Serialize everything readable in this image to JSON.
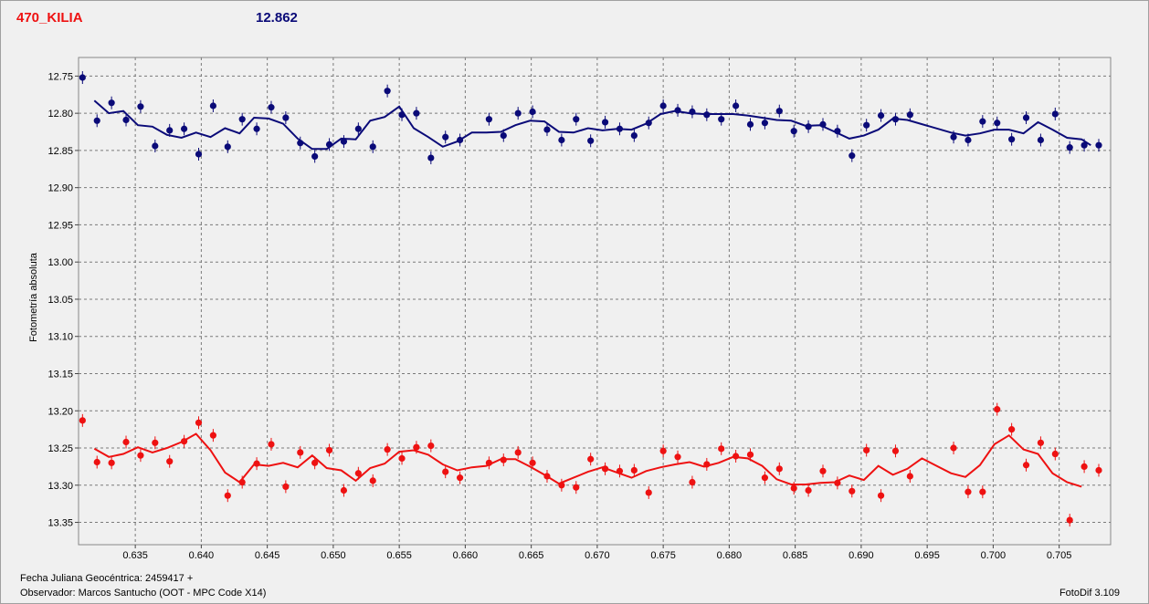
{
  "colors": {
    "series_blue": "#0a0a78",
    "series_red": "#ee1111",
    "grid": "#7a7a7a",
    "plot_bg": "#f0f0f0",
    "title_red": "#ee1111",
    "title_blue": "#0a0a78"
  },
  "chart_data": {
    "type": "scatter",
    "title": "470_KILIA",
    "subtitle": "12.862",
    "xlabel": "Fecha Juliana Geocéntrica: 2459417 +",
    "ylabel": "Fotometría absoluta",
    "xlim": [
      0.6307,
      0.7089
    ],
    "ylim": [
      12.725,
      13.38
    ],
    "y_reversed": true,
    "grid": true,
    "x_ticks": [
      0.635,
      0.64,
      0.645,
      0.65,
      0.655,
      0.66,
      0.665,
      0.67,
      0.675,
      0.68,
      0.685,
      0.69,
      0.695,
      0.7,
      0.705
    ],
    "x_tick_labels": [
      "0.635",
      "0.640",
      "0.645",
      "0.650",
      "0.655",
      "0.660",
      "0.665",
      "0.670",
      "0.675",
      "0.680",
      "0.685",
      "0.690",
      "0.695",
      "0.700",
      "0.705"
    ],
    "y_ticks": [
      12.75,
      12.8,
      12.85,
      12.9,
      12.95,
      13.0,
      13.05,
      13.1,
      13.15,
      13.2,
      13.25,
      13.3,
      13.35
    ],
    "y_tick_labels": [
      "12.75",
      "12.80",
      "12.85",
      "12.90",
      "12.95",
      "13.00",
      "13.05",
      "13.10",
      "13.15",
      "13.20",
      "13.25",
      "13.30",
      "13.35"
    ],
    "series": [
      {
        "color_key": "series_blue",
        "points": [
          [
            0.631,
            12.752
          ],
          [
            0.6321,
            12.81
          ],
          [
            0.6332,
            12.786
          ],
          [
            0.6343,
            12.809
          ],
          [
            0.6354,
            12.791
          ],
          [
            0.6365,
            12.844
          ],
          [
            0.6376,
            12.823
          ],
          [
            0.6387,
            12.821
          ],
          [
            0.6398,
            12.855
          ],
          [
            0.6409,
            12.79
          ],
          [
            0.642,
            12.845
          ],
          [
            0.6431,
            12.808
          ],
          [
            0.6442,
            12.821
          ],
          [
            0.6453,
            12.792
          ],
          [
            0.6464,
            12.806
          ],
          [
            0.6475,
            12.84
          ],
          [
            0.6486,
            12.858
          ],
          [
            0.6497,
            12.842
          ],
          [
            0.6508,
            12.838
          ],
          [
            0.6519,
            12.821
          ],
          [
            0.653,
            12.845
          ],
          [
            0.6541,
            12.77
          ],
          [
            0.6552,
            12.802
          ],
          [
            0.6563,
            12.8
          ],
          [
            0.6574,
            12.86
          ],
          [
            0.6585,
            12.832
          ],
          [
            0.6596,
            12.836
          ],
          [
            0.6618,
            12.808
          ],
          [
            0.6629,
            12.83
          ],
          [
            0.664,
            12.8
          ],
          [
            0.6651,
            12.798
          ],
          [
            0.6662,
            12.822
          ],
          [
            0.6673,
            12.836
          ],
          [
            0.6684,
            12.808
          ],
          [
            0.6695,
            12.837
          ],
          [
            0.6706,
            12.812
          ],
          [
            0.6717,
            12.821
          ],
          [
            0.6728,
            12.83
          ],
          [
            0.6739,
            12.813
          ],
          [
            0.675,
            12.79
          ],
          [
            0.6761,
            12.796
          ],
          [
            0.6772,
            12.798
          ],
          [
            0.6783,
            12.802
          ],
          [
            0.6794,
            12.808
          ],
          [
            0.6805,
            12.79
          ],
          [
            0.6816,
            12.815
          ],
          [
            0.6827,
            12.813
          ],
          [
            0.6838,
            12.797
          ],
          [
            0.6849,
            12.824
          ],
          [
            0.686,
            12.818
          ],
          [
            0.6871,
            12.815
          ],
          [
            0.6882,
            12.824
          ],
          [
            0.6893,
            12.857
          ],
          [
            0.6904,
            12.816
          ],
          [
            0.6915,
            12.803
          ],
          [
            0.6926,
            12.808
          ],
          [
            0.6937,
            12.802
          ],
          [
            0.697,
            12.832
          ],
          [
            0.6981,
            12.836
          ],
          [
            0.6992,
            12.811
          ],
          [
            0.7003,
            12.813
          ],
          [
            0.7014,
            12.835
          ],
          [
            0.7025,
            12.806
          ],
          [
            0.7036,
            12.836
          ],
          [
            0.7047,
            12.801
          ],
          [
            0.7058,
            12.846
          ],
          [
            0.7069,
            12.843
          ],
          [
            0.708,
            12.843
          ]
        ],
        "trend": [
          [
            0.6319,
            12.783
          ],
          [
            0.633,
            12.8
          ],
          [
            0.6341,
            12.797
          ],
          [
            0.6352,
            12.816
          ],
          [
            0.6363,
            12.818
          ],
          [
            0.6374,
            12.829
          ],
          [
            0.6385,
            12.833
          ],
          [
            0.6396,
            12.826
          ],
          [
            0.6407,
            12.832
          ],
          [
            0.6418,
            12.82
          ],
          [
            0.6429,
            12.827
          ],
          [
            0.644,
            12.806
          ],
          [
            0.6451,
            12.807
          ],
          [
            0.6462,
            12.814
          ],
          [
            0.6473,
            12.834
          ],
          [
            0.6484,
            12.848
          ],
          [
            0.6495,
            12.848
          ],
          [
            0.6506,
            12.834
          ],
          [
            0.6517,
            12.835
          ],
          [
            0.6528,
            12.81
          ],
          [
            0.6539,
            12.805
          ],
          [
            0.655,
            12.791
          ],
          [
            0.6561,
            12.82
          ],
          [
            0.6572,
            12.832
          ],
          [
            0.6583,
            12.845
          ],
          [
            0.6594,
            12.838
          ],
          [
            0.6605,
            12.826
          ],
          [
            0.6616,
            12.826
          ],
          [
            0.6627,
            12.825
          ],
          [
            0.6638,
            12.816
          ],
          [
            0.6649,
            12.81
          ],
          [
            0.666,
            12.811
          ],
          [
            0.6671,
            12.825
          ],
          [
            0.6682,
            12.826
          ],
          [
            0.6693,
            12.82
          ],
          [
            0.6704,
            12.823
          ],
          [
            0.6715,
            12.821
          ],
          [
            0.6726,
            12.822
          ],
          [
            0.6737,
            12.814
          ],
          [
            0.6748,
            12.801
          ],
          [
            0.6759,
            12.797
          ],
          [
            0.677,
            12.8
          ],
          [
            0.6781,
            12.801
          ],
          [
            0.6792,
            12.801
          ],
          [
            0.6803,
            12.801
          ],
          [
            0.6814,
            12.803
          ],
          [
            0.6825,
            12.806
          ],
          [
            0.6836,
            12.809
          ],
          [
            0.6847,
            12.81
          ],
          [
            0.6858,
            12.817
          ],
          [
            0.6869,
            12.816
          ],
          [
            0.688,
            12.825
          ],
          [
            0.6891,
            12.834
          ],
          [
            0.6902,
            12.83
          ],
          [
            0.6913,
            12.822
          ],
          [
            0.6924,
            12.807
          ],
          [
            0.6935,
            12.809
          ],
          [
            0.6968,
            12.826
          ],
          [
            0.6979,
            12.83
          ],
          [
            0.699,
            12.827
          ],
          [
            0.7001,
            12.822
          ],
          [
            0.7012,
            12.822
          ],
          [
            0.7023,
            12.827
          ],
          [
            0.7034,
            12.812
          ],
          [
            0.7045,
            12.822
          ],
          [
            0.7056,
            12.833
          ],
          [
            0.7067,
            12.835
          ],
          [
            0.7074,
            12.843
          ]
        ]
      },
      {
        "color_key": "series_red",
        "points": [
          [
            0.631,
            13.213
          ],
          [
            0.6321,
            13.269
          ],
          [
            0.6332,
            13.27
          ],
          [
            0.6343,
            13.242
          ],
          [
            0.6354,
            13.26
          ],
          [
            0.6365,
            13.243
          ],
          [
            0.6376,
            13.268
          ],
          [
            0.6387,
            13.241
          ],
          [
            0.6398,
            13.216
          ],
          [
            0.6409,
            13.233
          ],
          [
            0.642,
            13.314
          ],
          [
            0.6431,
            13.296
          ],
          [
            0.6442,
            13.271
          ],
          [
            0.6453,
            13.245
          ],
          [
            0.6464,
            13.302
          ],
          [
            0.6475,
            13.256
          ],
          [
            0.6486,
            13.27
          ],
          [
            0.6497,
            13.253
          ],
          [
            0.6508,
            13.307
          ],
          [
            0.6519,
            13.284
          ],
          [
            0.653,
            13.294
          ],
          [
            0.6541,
            13.252
          ],
          [
            0.6552,
            13.264
          ],
          [
            0.6563,
            13.249
          ],
          [
            0.6574,
            13.247
          ],
          [
            0.6585,
            13.282
          ],
          [
            0.6596,
            13.29
          ],
          [
            0.6618,
            13.27
          ],
          [
            0.6629,
            13.266
          ],
          [
            0.664,
            13.256
          ],
          [
            0.6651,
            13.27
          ],
          [
            0.6662,
            13.288
          ],
          [
            0.6673,
            13.3
          ],
          [
            0.6684,
            13.303
          ],
          [
            0.6695,
            13.265
          ],
          [
            0.6706,
            13.278
          ],
          [
            0.6717,
            13.281
          ],
          [
            0.6728,
            13.28
          ],
          [
            0.6739,
            13.31
          ],
          [
            0.675,
            13.254
          ],
          [
            0.6761,
            13.262
          ],
          [
            0.6772,
            13.296
          ],
          [
            0.6783,
            13.272
          ],
          [
            0.6794,
            13.251
          ],
          [
            0.6805,
            13.261
          ],
          [
            0.6816,
            13.259
          ],
          [
            0.6827,
            13.29
          ],
          [
            0.6838,
            13.278
          ],
          [
            0.6849,
            13.304
          ],
          [
            0.686,
            13.307
          ],
          [
            0.6871,
            13.281
          ],
          [
            0.6882,
            13.297
          ],
          [
            0.6893,
            13.308
          ],
          [
            0.6904,
            13.253
          ],
          [
            0.6915,
            13.314
          ],
          [
            0.6926,
            13.254
          ],
          [
            0.6937,
            13.288
          ],
          [
            0.697,
            13.25
          ],
          [
            0.6981,
            13.309
          ],
          [
            0.6992,
            13.309
          ],
          [
            0.7003,
            13.198
          ],
          [
            0.7014,
            13.225
          ],
          [
            0.7025,
            13.273
          ],
          [
            0.7036,
            13.243
          ],
          [
            0.7047,
            13.258
          ],
          [
            0.7058,
            13.347
          ],
          [
            0.7069,
            13.275
          ],
          [
            0.708,
            13.28
          ]
        ],
        "trend": [
          [
            0.6319,
            13.251
          ],
          [
            0.633,
            13.262
          ],
          [
            0.6341,
            13.258
          ],
          [
            0.6352,
            13.249
          ],
          [
            0.6363,
            13.256
          ],
          [
            0.6374,
            13.25
          ],
          [
            0.6385,
            13.242
          ],
          [
            0.6396,
            13.231
          ],
          [
            0.6407,
            13.253
          ],
          [
            0.6418,
            13.283
          ],
          [
            0.6429,
            13.296
          ],
          [
            0.644,
            13.272
          ],
          [
            0.6451,
            13.274
          ],
          [
            0.6462,
            13.27
          ],
          [
            0.6473,
            13.276
          ],
          [
            0.6484,
            13.26
          ],
          [
            0.6495,
            13.277
          ],
          [
            0.6506,
            13.28
          ],
          [
            0.6517,
            13.294
          ],
          [
            0.6528,
            13.277
          ],
          [
            0.6539,
            13.271
          ],
          [
            0.655,
            13.255
          ],
          [
            0.6561,
            13.253
          ],
          [
            0.6572,
            13.259
          ],
          [
            0.6583,
            13.272
          ],
          [
            0.6594,
            13.28
          ],
          [
            0.6605,
            13.276
          ],
          [
            0.6616,
            13.274
          ],
          [
            0.6627,
            13.265
          ],
          [
            0.6638,
            13.265
          ],
          [
            0.6649,
            13.275
          ],
          [
            0.666,
            13.286
          ],
          [
            0.6671,
            13.298
          ],
          [
            0.6682,
            13.29
          ],
          [
            0.6693,
            13.282
          ],
          [
            0.6704,
            13.276
          ],
          [
            0.6715,
            13.283
          ],
          [
            0.6726,
            13.29
          ],
          [
            0.6737,
            13.281
          ],
          [
            0.6748,
            13.276
          ],
          [
            0.6759,
            13.272
          ],
          [
            0.677,
            13.269
          ],
          [
            0.6781,
            13.275
          ],
          [
            0.6792,
            13.27
          ],
          [
            0.6803,
            13.262
          ],
          [
            0.6814,
            13.264
          ],
          [
            0.6825,
            13.274
          ],
          [
            0.6836,
            13.292
          ],
          [
            0.6847,
            13.299
          ],
          [
            0.6858,
            13.299
          ],
          [
            0.6869,
            13.297
          ],
          [
            0.688,
            13.296
          ],
          [
            0.6891,
            13.287
          ],
          [
            0.6902,
            13.293
          ],
          [
            0.6913,
            13.274
          ],
          [
            0.6924,
            13.286
          ],
          [
            0.6935,
            13.278
          ],
          [
            0.6946,
            13.264
          ],
          [
            0.6968,
            13.284
          ],
          [
            0.6979,
            13.289
          ],
          [
            0.699,
            13.273
          ],
          [
            0.7001,
            13.245
          ],
          [
            0.7012,
            13.233
          ],
          [
            0.7023,
            13.252
          ],
          [
            0.7034,
            13.258
          ],
          [
            0.7045,
            13.284
          ],
          [
            0.7056,
            13.296
          ],
          [
            0.7067,
            13.302
          ]
        ]
      }
    ]
  },
  "footer": {
    "date_label": "Fecha Juliana Geocéntrica: 2459417 +",
    "observer": "Observador: Marcos Santucho (OOT - MPC Code X14)",
    "software": "FotoDif 3.109"
  }
}
